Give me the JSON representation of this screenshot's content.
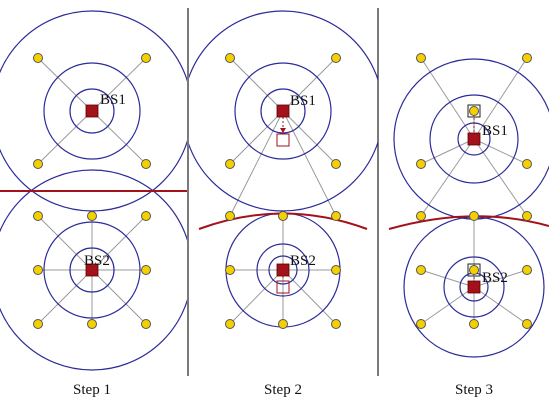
{
  "steps": [
    {
      "label": "Step 1",
      "bs1": "BS1",
      "bs2": "BS2"
    },
    {
      "label": "Step 2",
      "bs1": "BS1",
      "bs2": "BS2"
    },
    {
      "label": "Step 3",
      "bs1": "BS1",
      "bs2": "BS2"
    }
  ],
  "colors": {
    "ring": "#2b2b9a",
    "boundary": "#a3121b",
    "base_station": "#a3121b",
    "user": "#f5d000",
    "link": "#9a9a9a"
  }
}
